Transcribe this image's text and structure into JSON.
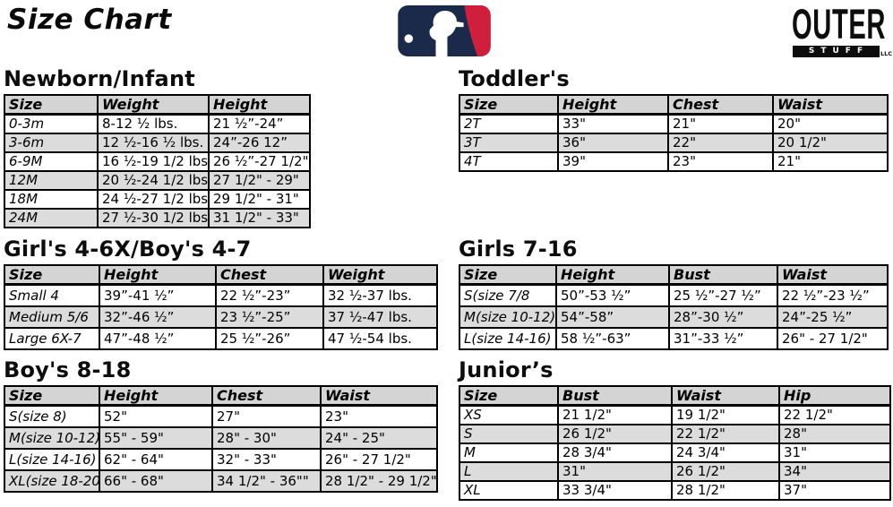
{
  "page": {
    "title": "Size Chart"
  },
  "logos": {
    "outerstuff": {
      "line1": "OUTER",
      "line2": "STUFF",
      "suffix": "LLC"
    }
  },
  "tables": [
    {
      "id": "newborn",
      "title": "Newborn/Infant",
      "columns": [
        "Size",
        "Weight",
        "Height"
      ],
      "rows": [
        [
          "0-3m",
          "8-12 ½ lbs.",
          "21 ½”-24”"
        ],
        [
          "3-6m",
          "12 ½-16 ½ lbs.",
          "24”-26 12”"
        ],
        [
          "6-9M",
          "16 ½-19 1/2 lbs.",
          "26 ½”-27 1/2\""
        ],
        [
          "12M",
          "20 ½-24 1/2 lbs.",
          "27 1/2\" - 29\""
        ],
        [
          "18M",
          "24 ½-27 1/2 lbs.",
          "29 1/2\" - 31\""
        ],
        [
          "24M",
          "27 ½-30 1/2 lbs.",
          "31 1/2\" - 33\""
        ]
      ]
    },
    {
      "id": "toddlers",
      "title": "Toddler's",
      "columns": [
        "Size",
        "Height",
        "Chest",
        "Waist"
      ],
      "rows": [
        [
          "2T",
          "33\"",
          "21\"",
          "20\""
        ],
        [
          "3T",
          "36\"",
          "22\"",
          "20 1/2\""
        ],
        [
          "4T",
          "39\"",
          "23\"",
          "21\""
        ]
      ]
    },
    {
      "id": "girls46x",
      "title": "Girl's 4-6X/Boy's 4-7",
      "columns": [
        "Size",
        "Height",
        "Chest",
        "Weight"
      ],
      "rows": [
        [
          "Small 4",
          "39”-41 ½”",
          "22 ½”-23”",
          "32 ½-37 lbs."
        ],
        [
          "Medium 5/6",
          "32”-46 ½”",
          "23 ½”-25”",
          "37 ½-47 lbs."
        ],
        [
          "Large 6X-7",
          "47”-48 ½”",
          "25 ½”-26”",
          "47 ½-54 lbs."
        ]
      ]
    },
    {
      "id": "girls716",
      "title": "Girls 7-16",
      "columns": [
        "Size",
        "Height",
        "Bust",
        "Waist"
      ],
      "rows": [
        [
          "S(size 7/8",
          "50”-53 ½”",
          "25 ½”-27 ½”",
          "22 ½”-23 ½”"
        ],
        [
          "M(size 10-12)",
          "54”-58”",
          "28”-30 ½”",
          "24”-25 ½”"
        ],
        [
          "L(size 14-16)",
          "58 ½”-63”",
          "31”-33 ½”",
          "26\" - 27 1/2\""
        ]
      ]
    },
    {
      "id": "boys818",
      "title": "Boy's 8-18",
      "columns": [
        "Size",
        "Height",
        "Chest",
        "Waist"
      ],
      "rows": [
        [
          "S(size 8)",
          "52\"",
          "27\"",
          "23\""
        ],
        [
          "M(size 10-12)",
          "55\" - 59\"",
          "28\" - 30\"",
          "24\" - 25\""
        ],
        [
          "L(size 14-16)",
          "62\" - 64\"",
          "32\" - 33\"",
          "26\" - 27 1/2\""
        ],
        [
          "XL(size 18-20)",
          "66\" - 68\"",
          "34 1/2\" - 36\"\"",
          "28 1/2\" - 29 1/2\""
        ]
      ]
    },
    {
      "id": "juniors",
      "title": "Junior’s",
      "columns": [
        "Size",
        "Bust",
        "Waist",
        "Hip"
      ],
      "rows": [
        [
          "XS",
          "21 1/2\"",
          "19 1/2\"",
          "22 1/2\""
        ],
        [
          "S",
          "26 1/2\"",
          "22 1/2\"",
          "28\""
        ],
        [
          "M",
          "28 3/4\"",
          "24 3/4\"",
          "31\""
        ],
        [
          "L",
          "31\"",
          "26 1/2\"",
          "34\""
        ],
        [
          "XL",
          "33 3/4\"",
          "28 1/2\"",
          "37\""
        ]
      ]
    }
  ]
}
